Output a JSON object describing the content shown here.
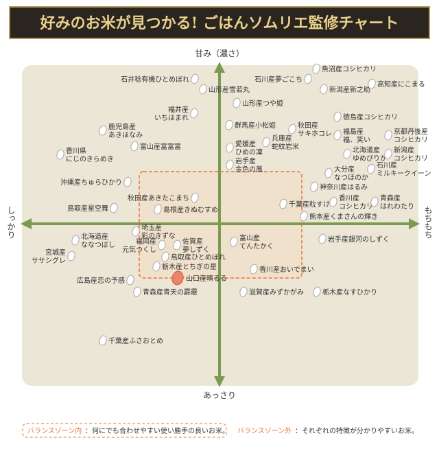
{
  "header": {
    "title": "好みのお米が見つかる! ごはんソムリエ監修チャート"
  },
  "axes": {
    "top": "甘み（濃さ）",
    "bottom": "あっさり",
    "left": "しっかり",
    "right": "もちもち"
  },
  "nodes": [
    {
      "label": [
        "石井稔有機ひとめぼれ"
      ]
    },
    {
      "label": [
        "山形産雪若丸"
      ]
    },
    {
      "label": [
        "石川産夢ごこち"
      ]
    },
    {
      "label": [
        "魚沼産コシヒカリ"
      ]
    },
    {
      "label": [
        "新潟産新之助"
      ]
    },
    {
      "label": [
        "高知産にこまる"
      ]
    },
    {
      "label": [
        "山形産つや姫"
      ]
    },
    {
      "label": [
        "福井産",
        "いちほまれ"
      ]
    },
    {
      "label": [
        "徳島産コシヒカリ"
      ]
    },
    {
      "label": [
        "鹿児島産",
        "あきほなみ"
      ]
    },
    {
      "label": [
        "群馬産小松姫"
      ]
    },
    {
      "label": [
        "秋田産",
        "サキホコレ"
      ]
    },
    {
      "label": [
        "福島産",
        "福、笑い"
      ]
    },
    {
      "label": [
        "京都丹後産",
        "コシヒカリ"
      ]
    },
    {
      "label": [
        "兵庫産",
        "蛇紋岩米"
      ]
    },
    {
      "label": [
        "香川県",
        "にじのきらめき"
      ]
    },
    {
      "label": [
        "富山産富富富"
      ]
    },
    {
      "label": [
        "愛媛産",
        "ひめの凜"
      ]
    },
    {
      "label": [
        "北海道産",
        "ゆめぴりか"
      ]
    },
    {
      "label": [
        "新潟産",
        "コシヒカリ"
      ]
    },
    {
      "label": [
        "岩手産",
        "金色の風"
      ]
    },
    {
      "label": [
        "石川産",
        "ミルキークイーン"
      ]
    },
    {
      "label": [
        "大分産",
        "なつほのか"
      ]
    },
    {
      "label": [
        "沖縄産ちゅらひかり"
      ]
    },
    {
      "label": [
        "神奈川産はるみ"
      ]
    },
    {
      "label": [
        "秋田産あきたこまち"
      ]
    },
    {
      "label": [
        "千葉産粒すけ"
      ]
    },
    {
      "label": [
        "香川産",
        "コシヒカリ"
      ]
    },
    {
      "label": [
        "青森産",
        "はれわたり"
      ]
    },
    {
      "label": [
        "鳥取産星空舞"
      ]
    },
    {
      "label": [
        "島根産きぬむすめ"
      ]
    },
    {
      "label": [
        "熊本産くまさんの輝き"
      ]
    },
    {
      "label": [
        "埼玉産",
        "彩のきずな"
      ]
    },
    {
      "label": [
        "北海道産",
        "ななつぼし"
      ]
    },
    {
      "label": [
        "佐賀産",
        "夢しずく"
      ]
    },
    {
      "label": [
        "富山産",
        "てんたかく"
      ]
    },
    {
      "label": [
        "岩手産銀河のしずく"
      ]
    },
    {
      "label": [
        "宮城産",
        "ササシグレ"
      ]
    },
    {
      "label": [
        "福岡産",
        "元気つくし"
      ]
    },
    {
      "label": [
        "鳥取産ひとめぼれ"
      ]
    },
    {
      "label": [
        "栃木産とちぎの星"
      ]
    },
    {
      "label": [
        "香川産おいでまい"
      ]
    },
    {
      "label": [
        "広島産恋の予感"
      ]
    },
    {
      "label": [
        "山口産晴るる"
      ],
      "highlight": true
    },
    {
      "label": [
        "青森産青天の霹靂"
      ]
    },
    {
      "label": [
        "滋賀産みずかがみ"
      ]
    },
    {
      "label": [
        "栃木産なすひかり"
      ]
    },
    {
      "label": [
        "千葉産ふさおとめ"
      ]
    }
  ],
  "legend": {
    "inside": {
      "label": "バランスゾーン内",
      "text": "：何にでも合わせやすい使い勝手の良いお米。"
    },
    "outside": {
      "label": "バランスゾーン外",
      "text": "：それぞれの特徴が分かりやすいお米。"
    }
  }
}
